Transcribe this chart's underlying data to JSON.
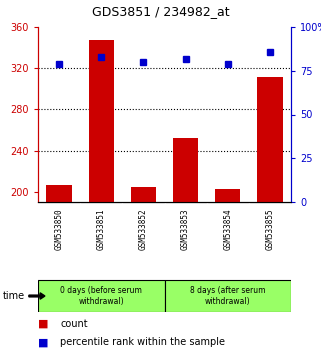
{
  "title": "GDS3851 / 234982_at",
  "categories": [
    "GSM533850",
    "GSM533851",
    "GSM533852",
    "GSM533853",
    "GSM533854",
    "GSM533855"
  ],
  "counts": [
    207,
    347,
    205,
    252,
    203,
    311
  ],
  "percentiles": [
    79,
    83,
    80,
    82,
    79,
    86
  ],
  "ylim_left": [
    190,
    360
  ],
  "ylim_right": [
    0,
    100
  ],
  "yticks_left": [
    200,
    240,
    280,
    320,
    360
  ],
  "yticks_right": [
    0,
    25,
    50,
    75,
    100
  ],
  "bar_color": "#cc0000",
  "dot_color": "#0000cc",
  "group1_label": "0 days (before serum\nwithdrawal)",
  "group2_label": "8 days (after serum\nwithdrawal)",
  "group1_indices": [
    0,
    1,
    2
  ],
  "group2_indices": [
    3,
    4,
    5
  ],
  "group_bg_color": "#99ff66",
  "tick_bg_color": "#cccccc",
  "left_axis_color": "#cc0000",
  "right_axis_color": "#0000cc",
  "dotted_lines": [
    240,
    280,
    320
  ],
  "legend_count_color": "#cc0000",
  "legend_pct_color": "#0000cc"
}
